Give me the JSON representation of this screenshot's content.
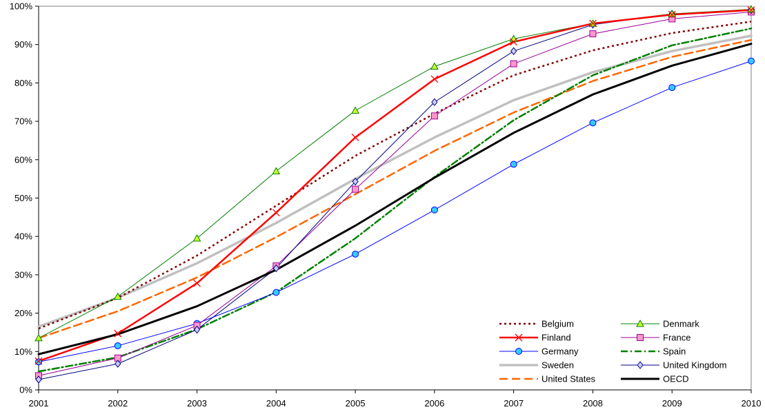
{
  "chart_data": {
    "type": "line",
    "title": "",
    "xlabel": "",
    "ylabel": "",
    "x": [
      "2001",
      "2002",
      "2003",
      "2004",
      "2005",
      "2006",
      "2007",
      "2008",
      "2009",
      "2010"
    ],
    "ylim": [
      0,
      100
    ],
    "y_ticks": [
      "0%",
      "10%",
      "20%",
      "30%",
      "40%",
      "50%",
      "60%",
      "70%",
      "80%",
      "90%",
      "100%"
    ],
    "grid": false,
    "legend_position": "bottom-right",
    "series": [
      {
        "name": "Belgium",
        "color": "#800000",
        "dash": "dotted",
        "marker": "none",
        "values": [
          16,
          24,
          35,
          48,
          61,
          72,
          82,
          88.5,
          93,
          96
        ]
      },
      {
        "name": "Denmark",
        "color": "#008000",
        "dash": "solid",
        "marker": "triangle",
        "values": [
          13.5,
          24.3,
          39.5,
          57,
          72.8,
          84.3,
          91.5,
          95.5,
          98,
          99.2
        ]
      },
      {
        "name": "Finland",
        "color": "#ff0000",
        "dash": "solid",
        "marker": "x",
        "values": [
          7.5,
          14.7,
          27.8,
          46.2,
          65.8,
          81,
          90.7,
          95.5,
          97.8,
          99
        ]
      },
      {
        "name": "France",
        "color": "#990099",
        "dash": "solid",
        "marker": "square",
        "values": [
          3.7,
          8.3,
          16.8,
          32.3,
          52.3,
          71.4,
          85,
          92.8,
          96.7,
          98.5
        ]
      },
      {
        "name": "Germany",
        "color": "#0000ff",
        "dash": "solid",
        "marker": "circle",
        "values": [
          7.3,
          11.5,
          17.3,
          25.4,
          35.4,
          46.9,
          58.8,
          69.6,
          78.8,
          85.7
        ]
      },
      {
        "name": "Spain",
        "color": "#008000",
        "dash": "dashdot",
        "marker": "none",
        "values": [
          4.8,
          8.5,
          15.8,
          25.5,
          39.5,
          55.5,
          70.3,
          82,
          89.8,
          94.2
        ]
      },
      {
        "name": "Sweden",
        "color": "#c0c0c0",
        "dash": "solid",
        "marker": "none",
        "values": [
          16.5,
          24,
          33,
          43.5,
          55,
          65.8,
          75.5,
          82.8,
          88.3,
          92.3
        ]
      },
      {
        "name": "United Kingdom",
        "color": "#000080",
        "dash": "solid",
        "marker": "diamond",
        "values": [
          2.7,
          6.8,
          15.7,
          31.7,
          54.3,
          75,
          88.3,
          95.2,
          98,
          99
        ]
      },
      {
        "name": "United States",
        "color": "#ff6600",
        "dash": "dashed",
        "marker": "none",
        "values": [
          13.5,
          20.5,
          29.3,
          39.8,
          51,
          62.3,
          72.3,
          80.5,
          86.8,
          91.2
        ]
      },
      {
        "name": "OECD",
        "color": "#000000",
        "dash": "solid",
        "marker": "none",
        "values": [
          9.3,
          14.5,
          21.8,
          31.3,
          42.8,
          55.3,
          67,
          77,
          84.5,
          90.2
        ]
      }
    ]
  }
}
